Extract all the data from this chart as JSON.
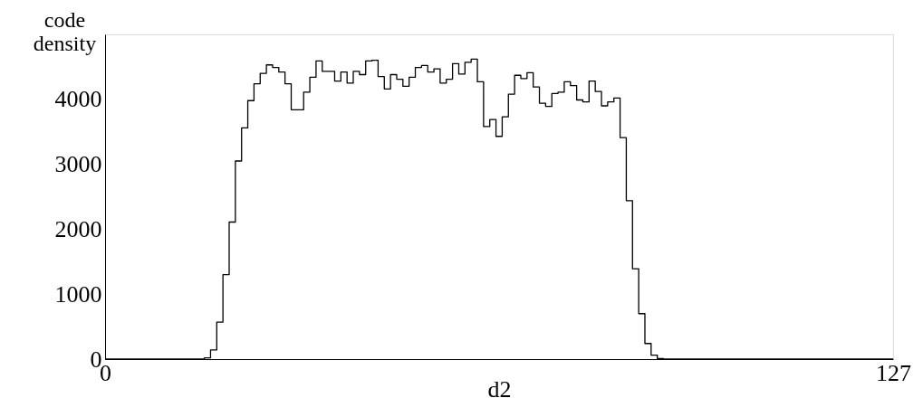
{
  "chart_data": {
    "type": "histogram",
    "xlabel": "d2",
    "ylabel": "code density",
    "bins": [
      0,
      1,
      2,
      3,
      4,
      5,
      6,
      7,
      8,
      9,
      10,
      11,
      12,
      13,
      14,
      15,
      16,
      17,
      18,
      19,
      20,
      21,
      22,
      23,
      24,
      25,
      26,
      27,
      28,
      29,
      30,
      31,
      32,
      33,
      34,
      35,
      36,
      37,
      38,
      39,
      40,
      41,
      42,
      43,
      44,
      45,
      46,
      47,
      48,
      49,
      50,
      51,
      52,
      53,
      54,
      55,
      56,
      57,
      58,
      59,
      60,
      61,
      62,
      63,
      64,
      65,
      66,
      67,
      68,
      69,
      70,
      71,
      72,
      73,
      74,
      75,
      76,
      77,
      78,
      79,
      80,
      81,
      82,
      83,
      84,
      85,
      86,
      87,
      88,
      89,
      90,
      91,
      92,
      93,
      94,
      95,
      96,
      97,
      98,
      99,
      100,
      101,
      102,
      103,
      104,
      105,
      106,
      107,
      108,
      109,
      110,
      111,
      112,
      113,
      114,
      115,
      116,
      117,
      118,
      119,
      120,
      121,
      122,
      123,
      124,
      125,
      126,
      127
    ],
    "values": [
      0,
      0,
      0,
      0,
      0,
      0,
      0,
      0,
      0,
      0,
      0,
      0,
      0,
      0,
      0,
      0,
      20,
      140,
      570,
      1300,
      2110,
      3050,
      3560,
      3980,
      4240,
      4400,
      4530,
      4490,
      4420,
      4240,
      3840,
      3840,
      4110,
      4340,
      4590,
      4430,
      4430,
      4280,
      4420,
      4250,
      4430,
      4380,
      4590,
      4600,
      4350,
      4160,
      4380,
      4310,
      4200,
      4340,
      4490,
      4520,
      4420,
      4470,
      4250,
      4310,
      4550,
      4390,
      4570,
      4620,
      4270,
      3580,
      3690,
      3430,
      3730,
      4080,
      4370,
      4320,
      4410,
      4190,
      3940,
      3890,
      4090,
      4110,
      4270,
      4210,
      3990,
      3960,
      4280,
      4120,
      3900,
      3960,
      4020,
      3410,
      2440,
      1390,
      700,
      240,
      60,
      10,
      0,
      0,
      0,
      0,
      0,
      0,
      0,
      0,
      0,
      0,
      0,
      0,
      0,
      0,
      0,
      0,
      0,
      0,
      0,
      0,
      0,
      0,
      0,
      0,
      0,
      0,
      0,
      0,
      0,
      0,
      0,
      0,
      0,
      0,
      0,
      0,
      0
    ],
    "color": "#000000",
    "xlim": [
      0,
      127
    ],
    "xticks": [
      0,
      127
    ],
    "ylim": [
      0,
      5000
    ],
    "yticks": [
      0,
      1000,
      2000,
      3000,
      4000
    ],
    "grid": false
  }
}
